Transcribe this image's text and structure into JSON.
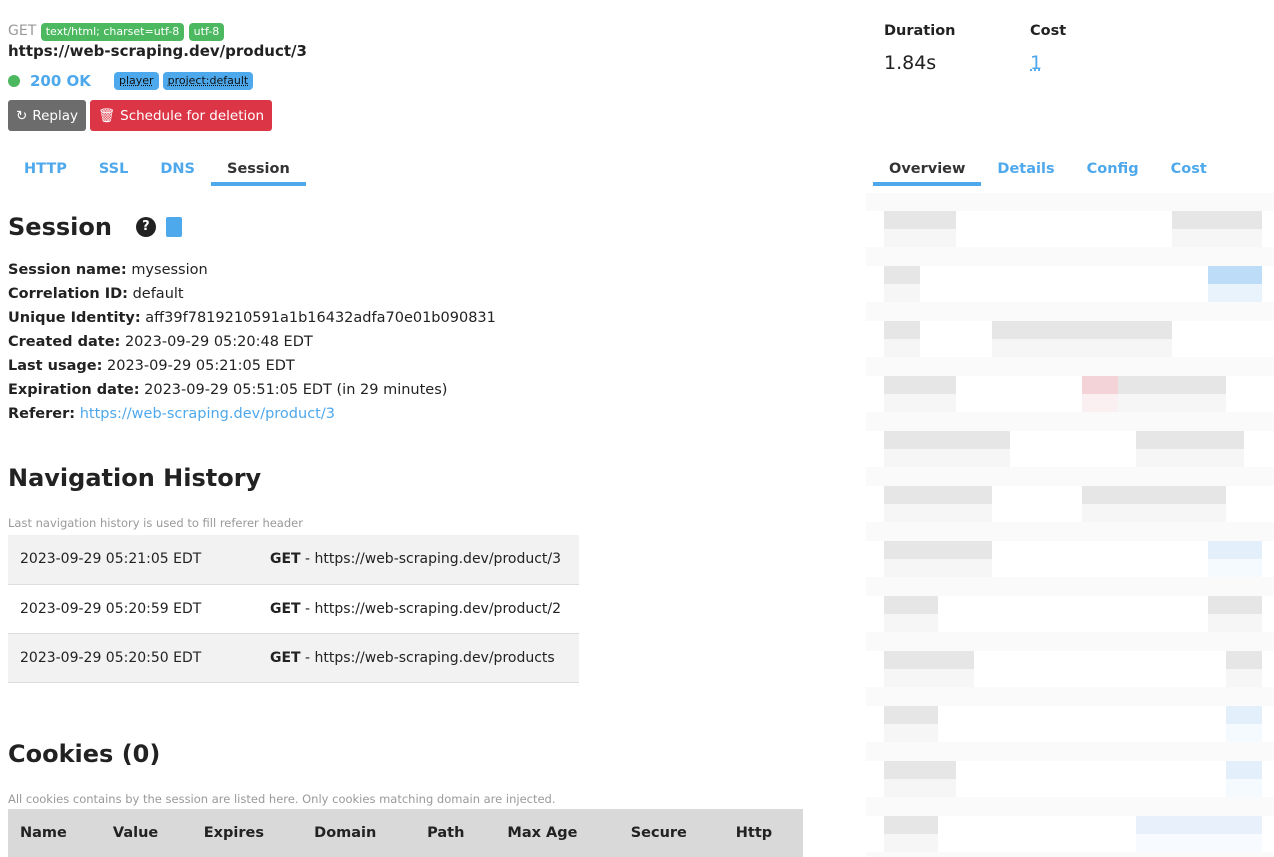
{
  "request": {
    "method": "GET",
    "content_type": "text/html; charset=utf-8",
    "encoding": "utf-8",
    "url": "https://web-scraping.dev/product/3",
    "status": "200 OK",
    "tags": [
      "player",
      "project:default"
    ]
  },
  "actions": {
    "replay": "Replay",
    "delete": "Schedule for deletion"
  },
  "metrics": {
    "duration_label": "Duration",
    "duration": "1.84s",
    "cost_label": "Cost",
    "cost": "1"
  },
  "left_tabs": [
    "HTTP",
    "SSL",
    "DNS",
    "Session"
  ],
  "right_tabs": [
    "Overview",
    "Details",
    "Config",
    "Cost"
  ],
  "session": {
    "title": "Session",
    "fields": [
      {
        "label": "Session name:",
        "value": "mysession"
      },
      {
        "label": "Correlation ID:",
        "value": "default"
      },
      {
        "label": "Unique Identity:",
        "value": "aff39f7819210591a1b16432adfa70e01b090831"
      },
      {
        "label": "Created date:",
        "value": "2023-09-29 05:20:48 EDT"
      },
      {
        "label": "Last usage:",
        "value": "2023-09-29 05:21:05 EDT"
      },
      {
        "label": "Expiration date:",
        "value": "2023-09-29 05:51:05 EDT (in 29 minutes)"
      },
      {
        "label": "Referer:",
        "value": "https://web-scraping.dev/product/3"
      }
    ]
  },
  "navigation": {
    "title": "Navigation History",
    "hint": "Last navigation history is used to fill referer header",
    "rows": [
      {
        "date": "2023-09-29 05:21:05 EDT",
        "method": "GET",
        "url": " - https://web-scraping.dev/product/3"
      },
      {
        "date": "2023-09-29 05:20:59 EDT",
        "method": "GET",
        "url": " - https://web-scraping.dev/product/2"
      },
      {
        "date": "2023-09-29 05:20:50 EDT",
        "method": "GET",
        "url": " - https://web-scraping.dev/products"
      }
    ]
  },
  "cookies": {
    "title": "Cookies (0)",
    "hint": "All cookies contains by the session are listed here. Only cookies matching domain are injected.",
    "columns": [
      "Name",
      "Value",
      "Expires",
      "Domain",
      "Path",
      "Max Age",
      "Secure",
      "Http"
    ]
  },
  "colors": {
    "accent": "#4ea8ec",
    "success": "#4cb960",
    "danger": "#dc3545",
    "secondary": "#6c6c6c"
  }
}
